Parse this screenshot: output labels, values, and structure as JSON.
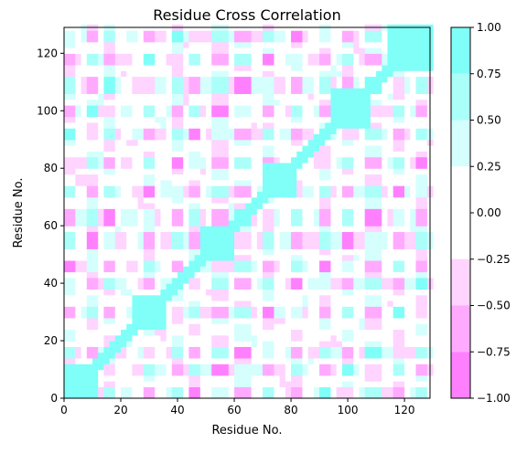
{
  "chart_data": {
    "type": "heatmap",
    "title": "Residue Cross Correlation",
    "xlabel": "Residue No.",
    "ylabel": "Residue No.",
    "xlim": [
      0,
      129
    ],
    "ylim": [
      0,
      129
    ],
    "xticks": [
      0,
      20,
      40,
      60,
      80,
      100,
      120
    ],
    "yticks": [
      0,
      20,
      40,
      60,
      80,
      100,
      120
    ],
    "n_residues": 129,
    "grid": false,
    "colorbar": {
      "ticks": [
        1.0,
        0.75,
        0.5,
        0.25,
        0.0,
        -0.25,
        -0.5,
        -0.75,
        -1.0
      ],
      "tick_labels": [
        "1.00",
        "0.75",
        "0.50",
        "0.25",
        "0.00",
        "−0.25",
        "−0.50",
        "−0.75",
        "−1.00"
      ],
      "levels": [
        {
          "from": 0.75,
          "to": 1.0,
          "color": "#7ffff7"
        },
        {
          "from": 0.5,
          "to": 0.75,
          "color": "#aafff9"
        },
        {
          "from": 0.25,
          "to": 0.5,
          "color": "#d4fffc"
        },
        {
          "from": -0.25,
          "to": 0.25,
          "color": "#ffffff"
        },
        {
          "from": -0.5,
          "to": -0.25,
          "color": "#ffd4ff"
        },
        {
          "from": -0.75,
          "to": -0.5,
          "color": "#ffaaff"
        },
        {
          "from": -1.0,
          "to": -0.75,
          "color": "#ff80ff"
        }
      ]
    },
    "structure": {
      "diagonal_value": 1.0,
      "positive_blocks": [
        {
          "x": [
            0,
            12
          ],
          "y": [
            0,
            12
          ],
          "value": 0.85
        },
        {
          "x": [
            25,
            35
          ],
          "y": [
            25,
            35
          ],
          "value": 0.8
        },
        {
          "x": [
            48,
            60
          ],
          "y": [
            48,
            60
          ],
          "value": 0.8
        },
        {
          "x": [
            70,
            82
          ],
          "y": [
            70,
            82
          ],
          "value": 0.8
        },
        {
          "x": [
            94,
            108
          ],
          "y": [
            94,
            108
          ],
          "value": 0.8
        },
        {
          "x": [
            114,
            129
          ],
          "y": [
            114,
            129
          ],
          "value": 0.8
        }
      ],
      "bands": [
        {
          "center": 2,
          "width": 4
        },
        {
          "center": 10,
          "width": 3
        },
        {
          "center": 16,
          "width": 3
        },
        {
          "center": 30,
          "width": 4
        },
        {
          "center": 40,
          "width": 3
        },
        {
          "center": 46,
          "width": 3
        },
        {
          "center": 55,
          "width": 3
        },
        {
          "center": 63,
          "width": 3
        },
        {
          "center": 72,
          "width": 3
        },
        {
          "center": 82,
          "width": 3
        },
        {
          "center": 92,
          "width": 3
        },
        {
          "center": 100,
          "width": 3
        },
        {
          "center": 109,
          "width": 3
        },
        {
          "center": 118,
          "width": 3
        },
        {
          "center": 126,
          "width": 3
        }
      ]
    }
  }
}
